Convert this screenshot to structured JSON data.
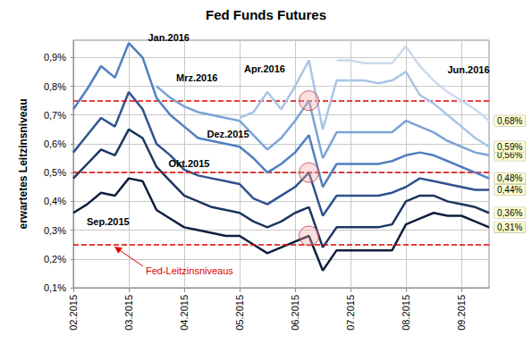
{
  "chart_data": {
    "type": "line",
    "title": "Fed Funds Futures",
    "y_label": "erwartetes Leitzinsniveau",
    "categories": [
      "02.2015",
      null,
      null,
      null,
      "03.2015",
      null,
      null,
      null,
      "04.2015",
      null,
      null,
      null,
      "05.2015",
      null,
      null,
      null,
      "06.2015",
      null,
      null,
      null,
      "07.2015",
      null,
      null,
      null,
      "08.2015",
      null,
      null,
      null,
      "09.2015",
      null,
      null
    ],
    "ylim": [
      0.1,
      0.96
    ],
    "yticks": [
      {
        "value": 0.1,
        "label": "0,1%"
      },
      {
        "value": 0.2,
        "label": "0,2%"
      },
      {
        "value": 0.3,
        "label": "0,3%"
      },
      {
        "value": 0.4,
        "label": "0,4%"
      },
      {
        "value": 0.5,
        "label": "0,5%"
      },
      {
        "value": 0.6,
        "label": "0,6%"
      },
      {
        "value": 0.7,
        "label": "0,7%"
      },
      {
        "value": 0.8,
        "label": "0,8%"
      },
      {
        "value": 0.9,
        "label": "0,9%"
      }
    ],
    "grid": true,
    "data_labels": true,
    "series": [
      {
        "name": "Sep.2015",
        "color": "#0f1f3d",
        "values": [
          0.36,
          0.39,
          0.43,
          0.42,
          0.48,
          0.47,
          0.37,
          0.34,
          0.31,
          0.3,
          0.29,
          0.28,
          0.28,
          0.25,
          0.22,
          0.24,
          0.26,
          0.28,
          0.16,
          0.23,
          0.23,
          0.23,
          0.23,
          0.23,
          0.32,
          0.34,
          0.36,
          0.35,
          0.35,
          0.33,
          0.31
        ],
        "value_labels": [
          null,
          null,
          null,
          null,
          null,
          null,
          null,
          null,
          null,
          null,
          null,
          null,
          null,
          null,
          null,
          null,
          null,
          null,
          null,
          null,
          null,
          null,
          null,
          null,
          null,
          null,
          null,
          null,
          null,
          null,
          "0,31%"
        ]
      },
      {
        "name": "Okt.2015",
        "color": "#1c355e",
        "values": [
          0.48,
          0.53,
          0.58,
          0.56,
          0.65,
          0.62,
          0.52,
          0.47,
          0.42,
          0.4,
          0.38,
          0.37,
          0.36,
          0.33,
          0.31,
          0.33,
          0.36,
          0.38,
          0.24,
          0.31,
          0.31,
          0.31,
          0.31,
          0.32,
          0.4,
          0.42,
          0.42,
          0.4,
          0.39,
          0.38,
          0.36
        ],
        "value_labels": [
          null,
          null,
          null,
          null,
          null,
          null,
          null,
          null,
          null,
          null,
          null,
          null,
          null,
          null,
          null,
          null,
          null,
          null,
          null,
          null,
          null,
          null,
          null,
          null,
          null,
          null,
          null,
          null,
          null,
          null,
          "0,36%"
        ]
      },
      {
        "name": "Dez.2015",
        "color": "#2f528f",
        "values": [
          0.57,
          0.63,
          0.69,
          0.66,
          0.78,
          0.72,
          0.6,
          0.56,
          0.51,
          0.49,
          0.48,
          0.47,
          0.46,
          0.41,
          0.39,
          0.42,
          0.45,
          0.5,
          0.35,
          0.42,
          0.42,
          0.42,
          0.42,
          0.43,
          0.45,
          0.48,
          0.47,
          0.46,
          0.45,
          0.44,
          0.44
        ],
        "value_labels": [
          null,
          null,
          null,
          null,
          null,
          null,
          null,
          null,
          null,
          null,
          null,
          null,
          null,
          null,
          null,
          null,
          null,
          null,
          null,
          null,
          null,
          null,
          null,
          null,
          null,
          null,
          null,
          null,
          null,
          null,
          "0,44%"
        ]
      },
      {
        "name": "Jan.2016",
        "color": "#4f7fbf",
        "values": [
          0.72,
          0.79,
          0.87,
          0.83,
          0.95,
          0.9,
          0.76,
          0.7,
          0.66,
          0.62,
          0.61,
          0.6,
          0.59,
          0.55,
          0.5,
          0.53,
          0.57,
          0.63,
          0.45,
          0.53,
          0.53,
          0.53,
          0.53,
          0.54,
          0.56,
          0.57,
          0.56,
          0.54,
          0.52,
          0.5,
          0.48
        ],
        "value_labels": [
          null,
          null,
          null,
          null,
          null,
          null,
          null,
          null,
          null,
          null,
          null,
          null,
          null,
          null,
          null,
          null,
          null,
          null,
          null,
          null,
          null,
          null,
          null,
          null,
          null,
          null,
          null,
          null,
          null,
          null,
          "0,48%"
        ]
      },
      {
        "name": "Mrz.2016",
        "color": "#7ba3d6",
        "values": [
          null,
          null,
          null,
          null,
          null,
          null,
          0.8,
          0.76,
          0.73,
          0.71,
          0.7,
          0.69,
          0.68,
          0.63,
          0.58,
          0.62,
          0.68,
          0.75,
          0.55,
          0.64,
          0.64,
          0.64,
          0.64,
          0.64,
          0.68,
          0.66,
          0.64,
          0.61,
          0.59,
          0.57,
          0.56
        ],
        "value_labels": [
          null,
          null,
          null,
          null,
          null,
          null,
          null,
          null,
          null,
          null,
          null,
          null,
          null,
          null,
          null,
          null,
          null,
          null,
          null,
          null,
          null,
          null,
          null,
          null,
          null,
          null,
          null,
          null,
          null,
          null,
          "0,56%"
        ]
      },
      {
        "name": "Apr.2016",
        "color": "#a9c4e6",
        "values": [
          null,
          null,
          null,
          null,
          null,
          null,
          null,
          null,
          null,
          null,
          null,
          null,
          0.69,
          0.71,
          0.78,
          0.72,
          0.8,
          0.89,
          0.65,
          0.82,
          0.82,
          0.82,
          0.81,
          0.82,
          0.85,
          0.77,
          0.74,
          0.7,
          0.66,
          0.62,
          0.59
        ],
        "value_labels": [
          null,
          null,
          null,
          null,
          null,
          null,
          null,
          null,
          null,
          null,
          null,
          null,
          null,
          null,
          null,
          null,
          null,
          null,
          null,
          null,
          null,
          null,
          null,
          null,
          null,
          null,
          null,
          null,
          null,
          null,
          "0,59%"
        ]
      },
      {
        "name": "Jun.2016",
        "color": "#cbdaee",
        "values": [
          null,
          null,
          null,
          null,
          null,
          null,
          null,
          null,
          null,
          null,
          null,
          null,
          null,
          null,
          null,
          null,
          null,
          null,
          null,
          0.89,
          0.89,
          0.88,
          0.88,
          0.88,
          0.94,
          0.87,
          0.82,
          0.78,
          0.75,
          0.72,
          0.68
        ],
        "value_labels": [
          null,
          null,
          null,
          null,
          null,
          null,
          null,
          null,
          null,
          null,
          null,
          null,
          null,
          null,
          null,
          null,
          null,
          null,
          null,
          null,
          null,
          null,
          null,
          null,
          null,
          null,
          null,
          null,
          null,
          null,
          "0,68%"
        ]
      }
    ],
    "reference_lines": {
      "label": "Fed-Leitzinsniveaus",
      "values": [
        0.25,
        0.5,
        0.75
      ],
      "color": "#e00000",
      "line_style": "dashed"
    },
    "highlights": [
      {
        "x_index": 17,
        "value": 0.75
      },
      {
        "x_index": 17,
        "value": 0.5
      },
      {
        "x_index": 17,
        "value": 0.28
      }
    ]
  }
}
